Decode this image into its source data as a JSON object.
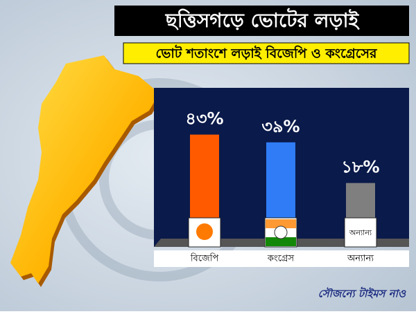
{
  "chart_data": {
    "type": "bar",
    "title": "ছত্তিসগড়ে ভোটের লড়াই",
    "subtitle": "ভোট শতাংশে লড়াই বিজেপি ও কংগ্রেসের",
    "categories": [
      "বিজেপি",
      "কংগ্রেস",
      "অন্যান্য"
    ],
    "values": [
      43,
      39,
      18
    ],
    "value_labels": [
      "৪৩%",
      "৩৯%",
      "১৮%"
    ],
    "colors": [
      "#ff5a00",
      "#2f7cf6",
      "#7f7f7f"
    ],
    "credit": "সৌজন্যে টাইমস নাও"
  }
}
